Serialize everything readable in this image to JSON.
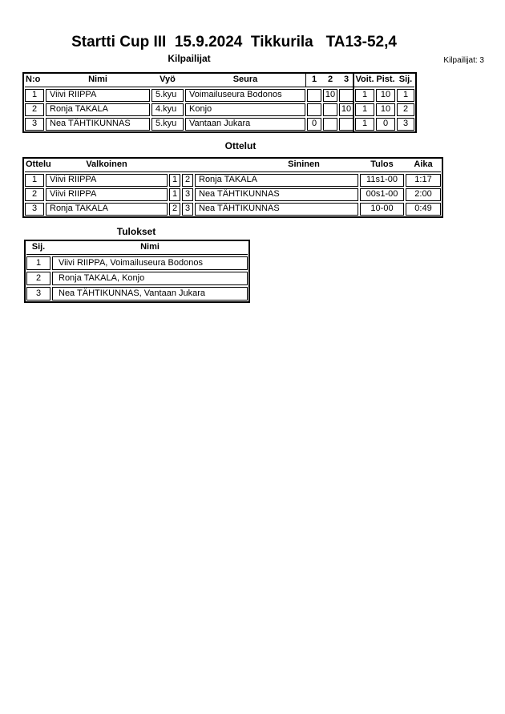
{
  "page": {
    "title": "Startti Cup III  15.9.2024  Tikkurila   TA13-52,4"
  },
  "colors": {
    "background": "#ffffff",
    "text": "#000000",
    "border": "#000000"
  },
  "competitors": {
    "heading": "Kilpailijat",
    "count_label": "Kilpailijat: 3",
    "columns": [
      "N:o",
      "Nimi",
      "Vyö",
      "Seura",
      "1",
      "2",
      "3",
      "Voit.",
      "Pist.",
      "Sij."
    ],
    "rows": [
      {
        "no": "1",
        "name": "Viivi RIIPPA",
        "belt": "5.kyu",
        "club": "Voimailuseura Bodonos",
        "m1": "",
        "m2": "10",
        "m3": "",
        "wins": "1",
        "points": "10",
        "place": "1"
      },
      {
        "no": "2",
        "name": "Ronja TAKALA",
        "belt": "4.kyu",
        "club": "Konjo",
        "m1": "",
        "m2": "",
        "m3": "10",
        "wins": "1",
        "points": "10",
        "place": "2"
      },
      {
        "no": "3",
        "name": "Nea TÄHTIKUNNAS",
        "belt": "5.kyu",
        "club": "Vantaan Jukara",
        "m1": "0",
        "m2": "",
        "m3": "",
        "wins": "1",
        "points": "0",
        "place": "3"
      }
    ]
  },
  "matches": {
    "heading": "Ottelut",
    "columns": [
      "Ottelu",
      "Valkoinen",
      "Sininen",
      "Tulos",
      "Aika"
    ],
    "rows": [
      {
        "no": "1",
        "white": "Viivi RIIPPA",
        "white_no": "1",
        "blue_no": "2",
        "blue": "Ronja TAKALA",
        "result": "11s1-00",
        "time": "1:17"
      },
      {
        "no": "2",
        "white": "Viivi RIIPPA",
        "white_no": "1",
        "blue_no": "3",
        "blue": "Nea TÄHTIKUNNAS",
        "result": "00s1-00",
        "time": "2:00"
      },
      {
        "no": "3",
        "white": "Ronja TAKALA",
        "white_no": "2",
        "blue_no": "3",
        "blue": "Nea TÄHTIKUNNAS",
        "result": "10-00",
        "time": "0:49"
      }
    ]
  },
  "results": {
    "heading": "Tulokset",
    "columns": [
      "Sij.",
      "Nimi"
    ],
    "rows": [
      {
        "place": "1",
        "name": "Viivi RIIPPA, Voimailuseura Bodonos"
      },
      {
        "place": "2",
        "name": "Ronja TAKALA, Konjo"
      },
      {
        "place": "3",
        "name": "Nea TÄHTIKUNNAS, Vantaan Jukara"
      }
    ]
  }
}
